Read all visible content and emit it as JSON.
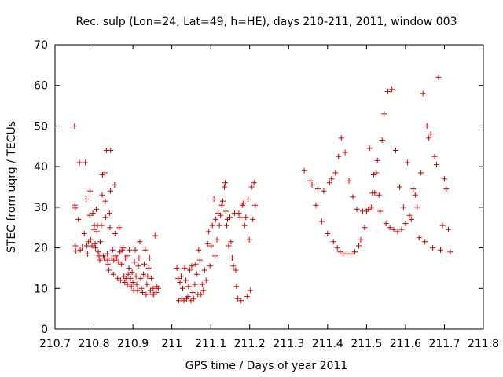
{
  "chart_data": {
    "type": "scatter",
    "title": "Rec. sulp (Lon=24, Lat=49, h=HE), days 210-211, 2011, window 003",
    "xlabel": "GPS time / Days of year 2011",
    "ylabel": "STEC from uqrg / TECUs",
    "xlim": [
      210.7,
      211.8
    ],
    "ylim": [
      0,
      70
    ],
    "xticks": [
      210.7,
      210.8,
      210.9,
      211.0,
      211.1,
      211.2,
      211.3,
      211.4,
      211.5,
      211.6,
      211.7,
      211.8
    ],
    "xtick_labels": [
      "210.7",
      "210.8",
      "210.9",
      "211",
      "211.1",
      "211.2",
      "211.3",
      "211.4",
      "211.5",
      "211.6",
      "211.7",
      "211.8"
    ],
    "yticks": [
      0,
      10,
      20,
      30,
      40,
      50,
      60,
      70
    ],
    "ytick_labels": [
      "0",
      "10",
      "20",
      "30",
      "40",
      "50",
      "60",
      "70"
    ],
    "grid": false,
    "marker": "+",
    "color": "#cc0000",
    "series": [
      {
        "name": "STEC",
        "points": [
          [
            210.75,
            50.0
          ],
          [
            210.751,
            30.5
          ],
          [
            210.752,
            29.8
          ],
          [
            210.752,
            20.5
          ],
          [
            210.753,
            19.2
          ],
          [
            210.76,
            27.0
          ],
          [
            210.763,
            41.0
          ],
          [
            210.765,
            19.5
          ],
          [
            210.77,
            20.2
          ],
          [
            210.775,
            23.5
          ],
          [
            210.778,
            41.0
          ],
          [
            210.78,
            32.0
          ],
          [
            210.782,
            20.5
          ],
          [
            210.784,
            18.5
          ],
          [
            210.786,
            21.5
          ],
          [
            210.789,
            28.0
          ],
          [
            210.79,
            34.0
          ],
          [
            210.792,
            22.0
          ],
          [
            210.795,
            20.5
          ],
          [
            210.797,
            28.5
          ],
          [
            210.8,
            24.5
          ],
          [
            210.801,
            25.5
          ],
          [
            210.803,
            21.0
          ],
          [
            210.804,
            20.0
          ],
          [
            210.806,
            29.5
          ],
          [
            210.808,
            24.0
          ],
          [
            210.809,
            25.5
          ],
          [
            210.811,
            19.0
          ],
          [
            210.813,
            18.0
          ],
          [
            210.815,
            17.0
          ],
          [
            210.816,
            21.5
          ],
          [
            210.819,
            25.5
          ],
          [
            210.821,
            33.0
          ],
          [
            210.822,
            38.0
          ],
          [
            210.824,
            18.0
          ],
          [
            210.826,
            17.5
          ],
          [
            210.828,
            38.5
          ],
          [
            210.829,
            31.5
          ],
          [
            210.83,
            27.5
          ],
          [
            210.832,
            44.0
          ],
          [
            210.834,
            18.5
          ],
          [
            210.835,
            17.0
          ],
          [
            210.836,
            16.0
          ],
          [
            210.838,
            14.5
          ],
          [
            210.84,
            28.5
          ],
          [
            210.841,
            25.0
          ],
          [
            210.842,
            34.0
          ],
          [
            210.843,
            44.0
          ],
          [
            210.846,
            17.5
          ],
          [
            210.848,
            19.5
          ],
          [
            210.85,
            13.5
          ],
          [
            210.851,
            17.0
          ],
          [
            210.853,
            35.5
          ],
          [
            210.854,
            23.5
          ],
          [
            210.856,
            18.0
          ],
          [
            210.859,
            17.5
          ],
          [
            210.861,
            12.5
          ],
          [
            210.863,
            16.5
          ],
          [
            210.865,
            25.0
          ],
          [
            210.867,
            19.0
          ],
          [
            210.869,
            12.0
          ],
          [
            210.871,
            16.0
          ],
          [
            210.873,
            19.5
          ],
          [
            210.875,
            20.0
          ],
          [
            210.877,
            13.0
          ],
          [
            210.879,
            11.5
          ],
          [
            210.881,
            17.5
          ],
          [
            210.882,
            12.5
          ],
          [
            210.885,
            18.0
          ],
          [
            210.886,
            11.0
          ],
          [
            210.888,
            13.5
          ],
          [
            210.89,
            15.0
          ],
          [
            210.891,
            19.5
          ],
          [
            210.894,
            12.5
          ],
          [
            210.896,
            10.5
          ],
          [
            210.898,
            14.0
          ],
          [
            210.9,
            11.5
          ],
          [
            210.902,
            9.5
          ],
          [
            210.904,
            16.5
          ],
          [
            210.906,
            19.5
          ],
          [
            210.908,
            13.0
          ],
          [
            210.91,
            11.0
          ],
          [
            210.912,
            9.5
          ],
          [
            210.914,
            15.5
          ],
          [
            210.916,
            17.5
          ],
          [
            210.918,
            21.5
          ],
          [
            210.92,
            12.5
          ],
          [
            210.922,
            10.0
          ],
          [
            210.925,
            9.0
          ],
          [
            210.927,
            13.5
          ],
          [
            210.929,
            16.0
          ],
          [
            210.932,
            19.5
          ],
          [
            210.934,
            8.5
          ],
          [
            210.936,
            11.0
          ],
          [
            210.938,
            13.0
          ],
          [
            210.941,
            15.0
          ],
          [
            210.943,
            17.5
          ],
          [
            210.945,
            9.5
          ],
          [
            210.947,
            12.5
          ],
          [
            210.95,
            8.5
          ],
          [
            210.952,
            10.0
          ],
          [
            210.954,
            8.5
          ],
          [
            210.957,
            23.0
          ],
          [
            210.96,
            9.0
          ],
          [
            210.962,
            10.5
          ],
          [
            210.965,
            10.0
          ],
          [
            211.013,
            15.0
          ],
          [
            211.016,
            12.5
          ],
          [
            211.018,
            7.0
          ],
          [
            211.021,
            11.5
          ],
          [
            211.024,
            13.0
          ],
          [
            211.026,
            7.5
          ],
          [
            211.028,
            10.0
          ],
          [
            211.031,
            7.0
          ],
          [
            211.033,
            15.0
          ],
          [
            211.036,
            12.0
          ],
          [
            211.038,
            7.5
          ],
          [
            211.041,
            8.0
          ],
          [
            211.043,
            10.5
          ],
          [
            211.046,
            14.5
          ],
          [
            211.049,
            7.0
          ],
          [
            211.051,
            15.5
          ],
          [
            211.054,
            9.0
          ],
          [
            211.056,
            7.5
          ],
          [
            211.059,
            11.0
          ],
          [
            211.061,
            16.0
          ],
          [
            211.064,
            13.5
          ],
          [
            211.067,
            8.5
          ],
          [
            211.069,
            19.5
          ],
          [
            211.072,
            17.0
          ],
          [
            211.075,
            8.5
          ],
          [
            211.078,
            11.0
          ],
          [
            211.081,
            9.5
          ],
          [
            211.084,
            14.5
          ],
          [
            211.088,
            12.0
          ],
          [
            211.092,
            21.0
          ],
          [
            211.095,
            24.0
          ],
          [
            211.098,
            15.5
          ],
          [
            211.101,
            20.5
          ],
          [
            211.104,
            25.5
          ],
          [
            211.108,
            32.0
          ],
          [
            211.111,
            18.0
          ],
          [
            211.113,
            27.0
          ],
          [
            211.116,
            22.0
          ],
          [
            211.119,
            28.5
          ],
          [
            211.122,
            25.5
          ],
          [
            211.125,
            28.0
          ],
          [
            211.128,
            30.5
          ],
          [
            211.131,
            31.5
          ],
          [
            211.135,
            35.0
          ],
          [
            211.137,
            36.0
          ],
          [
            211.139,
            29.0
          ],
          [
            211.141,
            25.5
          ],
          [
            211.143,
            27.0
          ],
          [
            211.146,
            20.5
          ],
          [
            211.149,
            27.5
          ],
          [
            211.152,
            21.5
          ],
          [
            211.155,
            17.5
          ],
          [
            211.158,
            15.5
          ],
          [
            211.161,
            28.5
          ],
          [
            211.164,
            14.5
          ],
          [
            211.166,
            10.5
          ],
          [
            211.169,
            7.5
          ],
          [
            211.172,
            28.5
          ],
          [
            211.175,
            27.5
          ],
          [
            211.178,
            7.0
          ],
          [
            211.181,
            30.5
          ],
          [
            211.184,
            31.0
          ],
          [
            211.187,
            25.5
          ],
          [
            211.19,
            27.5
          ],
          [
            211.193,
            8.0
          ],
          [
            211.196,
            32.0
          ],
          [
            211.199,
            22.0
          ],
          [
            211.202,
            9.5
          ],
          [
            211.205,
            35.0
          ],
          [
            211.208,
            27.0
          ],
          [
            211.211,
            36.0
          ],
          [
            211.214,
            30.5
          ],
          [
            211.34,
            39.0
          ],
          [
            211.355,
            36.5
          ],
          [
            211.36,
            35.5
          ],
          [
            211.37,
            30.5
          ],
          [
            211.375,
            34.5
          ],
          [
            211.385,
            26.5
          ],
          [
            211.39,
            34.0
          ],
          [
            211.4,
            23.5
          ],
          [
            211.405,
            36.0
          ],
          [
            211.41,
            37.0
          ],
          [
            211.415,
            21.5
          ],
          [
            211.42,
            38.5
          ],
          [
            211.425,
            20.0
          ],
          [
            211.428,
            42.5
          ],
          [
            211.432,
            19.0
          ],
          [
            211.435,
            47.0
          ],
          [
            211.44,
            18.5
          ],
          [
            211.445,
            43.5
          ],
          [
            211.45,
            18.5
          ],
          [
            211.455,
            36.5
          ],
          [
            211.46,
            18.5
          ],
          [
            211.465,
            32.5
          ],
          [
            211.47,
            19.0
          ],
          [
            211.475,
            29.5
          ],
          [
            211.48,
            20.5
          ],
          [
            211.485,
            22.0
          ],
          [
            211.49,
            29.0
          ],
          [
            211.495,
            25.0
          ],
          [
            211.5,
            29.0
          ],
          [
            211.505,
            29.5
          ],
          [
            211.508,
            44.5
          ],
          [
            211.512,
            30.0
          ],
          [
            211.515,
            33.5
          ],
          [
            211.518,
            38.0
          ],
          [
            211.521,
            33.5
          ],
          [
            211.525,
            38.5
          ],
          [
            211.528,
            41.5
          ],
          [
            211.532,
            33.0
          ],
          [
            211.535,
            29.0
          ],
          [
            211.54,
            46.5
          ],
          [
            211.545,
            53.0
          ],
          [
            211.55,
            26.0
          ],
          [
            211.555,
            58.5
          ],
          [
            211.56,
            25.0
          ],
          [
            211.565,
            59.0
          ],
          [
            211.57,
            24.5
          ],
          [
            211.575,
            44.0
          ],
          [
            211.58,
            24.0
          ],
          [
            211.585,
            35.0
          ],
          [
            211.59,
            24.5
          ],
          [
            211.595,
            30.0
          ],
          [
            211.6,
            26.0
          ],
          [
            211.605,
            41.0
          ],
          [
            211.61,
            28.0
          ],
          [
            211.615,
            27.0
          ],
          [
            211.62,
            34.5
          ],
          [
            211.625,
            33.0
          ],
          [
            211.63,
            30.0
          ],
          [
            211.635,
            22.5
          ],
          [
            211.64,
            38.5
          ],
          [
            211.645,
            58.0
          ],
          [
            211.65,
            21.5
          ],
          [
            211.655,
            50.0
          ],
          [
            211.66,
            47.0
          ],
          [
            211.665,
            48.0
          ],
          [
            211.67,
            20.0
          ],
          [
            211.675,
            42.5
          ],
          [
            211.68,
            40.5
          ],
          [
            211.685,
            62.0
          ],
          [
            211.69,
            19.5
          ],
          [
            211.695,
            25.5
          ],
          [
            211.7,
            37.0
          ],
          [
            211.705,
            34.5
          ],
          [
            211.71,
            24.5
          ],
          [
            211.715,
            19.0
          ]
        ]
      }
    ]
  }
}
